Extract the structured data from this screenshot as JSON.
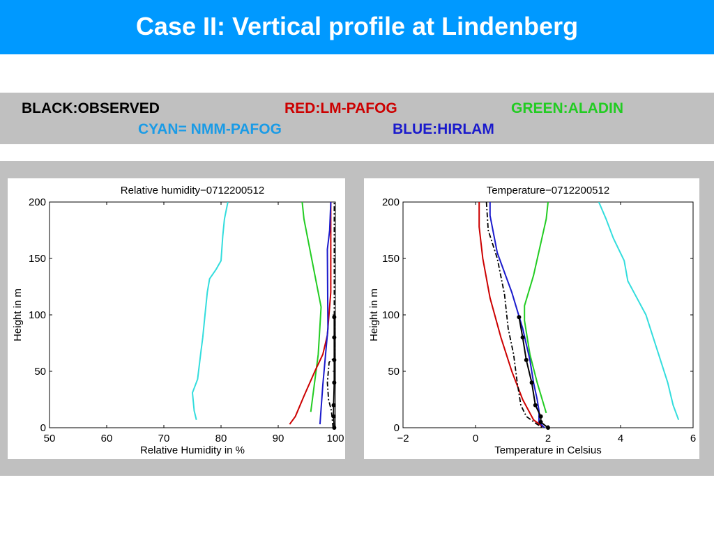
{
  "slide": {
    "title": "Case II: Vertical profile at Lindenberg"
  },
  "legend": {
    "observed": "BLACK:OBSERVED",
    "lm_pafog": "RED:LM-PAFOG",
    "aladin": "GREEN:ALADIN",
    "nmm_pafog": "CYAN= NMM-PAFOG",
    "hirlam": "BLUE:HIRLAM"
  },
  "colors": {
    "title_bar": "#0099ff",
    "band": "#c0c0c0",
    "observed": "#000000",
    "lm_pafog": "#cc0000",
    "aladin": "#22cc22",
    "nmm_pafog": "#33dddd",
    "hirlam": "#1a1acc"
  },
  "chart_data": [
    {
      "type": "line",
      "title": "Relative humidity−0712200512",
      "xlabel": "Relative Humidity in %",
      "ylabel": "Height in m",
      "xlim": [
        50,
        100
      ],
      "ylim": [
        0,
        200
      ],
      "xticks": [
        50,
        60,
        70,
        80,
        90,
        100
      ],
      "yticks": [
        0,
        50,
        100,
        150,
        200
      ],
      "grid": false,
      "series": [
        {
          "key": "nmm_pafog",
          "style": "solid",
          "markers": false,
          "points": [
            [
              75.7,
              7
            ],
            [
              75.3,
              15
            ],
            [
              75.0,
              31
            ],
            [
              75.9,
              43
            ],
            [
              76.5,
              68
            ],
            [
              76.8,
              80
            ],
            [
              77.2,
              100
            ],
            [
              77.6,
              120
            ],
            [
              78.0,
              132
            ],
            [
              79.1,
              140
            ],
            [
              80.0,
              148
            ],
            [
              80.3,
              170
            ],
            [
              80.6,
              185
            ],
            [
              81.2,
              200
            ]
          ]
        },
        {
          "key": "aladin",
          "style": "solid",
          "markers": false,
          "points": [
            [
              95.7,
              14
            ],
            [
              97.0,
              65
            ],
            [
              97.5,
              107
            ],
            [
              94.5,
              185
            ],
            [
              94.2,
              200
            ]
          ]
        },
        {
          "key": "lm_pafog",
          "style": "solid",
          "markers": false,
          "points": [
            [
              92.0,
              3
            ],
            [
              93.0,
              10
            ],
            [
              94.5,
              28
            ],
            [
              96.5,
              51
            ],
            [
              97.8,
              65
            ],
            [
              98.6,
              82
            ],
            [
              99.2,
              120
            ],
            [
              99.2,
              150
            ],
            [
              99.2,
              200
            ]
          ]
        },
        {
          "key": "hirlam",
          "style": "solid",
          "markers": false,
          "points": [
            [
              97.3,
              3
            ],
            [
              97.8,
              38
            ],
            [
              98.7,
              88
            ],
            [
              98.6,
              158
            ],
            [
              99.0,
              175
            ],
            [
              99.2,
              200
            ]
          ]
        },
        {
          "key": "observed",
          "style": "dashdot",
          "markers": false,
          "points": [
            [
              99.6,
              0
            ],
            [
              99.3,
              15
            ],
            [
              98.8,
              25
            ],
            [
              98.6,
              40
            ],
            [
              98.9,
              58
            ],
            [
              99.8,
              62
            ],
            [
              99.8,
              200
            ]
          ]
        },
        {
          "key": "observed",
          "style": "solid",
          "markers": true,
          "points": [
            [
              99.8,
              0
            ],
            [
              99.7,
              10
            ],
            [
              99.7,
              20
            ],
            [
              99.8,
              40
            ],
            [
              99.8,
              60
            ],
            [
              99.8,
              80
            ],
            [
              99.8,
              98
            ]
          ]
        }
      ]
    },
    {
      "type": "line",
      "title": "Temperature−0712200512",
      "xlabel": "Temperature in Celsius",
      "ylabel": "Height in m",
      "xlim": [
        -2,
        6
      ],
      "ylim": [
        0,
        200
      ],
      "xticks": [
        -2,
        0,
        2,
        4,
        6
      ],
      "yticks": [
        0,
        50,
        100,
        150,
        200
      ],
      "grid": false,
      "series": [
        {
          "key": "nmm_pafog",
          "style": "solid",
          "markers": false,
          "points": [
            [
              3.4,
              200
            ],
            [
              3.6,
              185
            ],
            [
              3.8,
              168
            ],
            [
              4.1,
              148
            ],
            [
              4.2,
              130
            ],
            [
              4.4,
              118
            ],
            [
              4.7,
              100
            ],
            [
              4.9,
              80
            ],
            [
              5.1,
              60
            ],
            [
              5.3,
              40
            ],
            [
              5.45,
              20
            ],
            [
              5.6,
              7
            ]
          ]
        },
        {
          "key": "aladin",
          "style": "solid",
          "markers": false,
          "points": [
            [
              2.0,
              200
            ],
            [
              1.95,
              185
            ],
            [
              1.6,
              135
            ],
            [
              1.35,
              108
            ],
            [
              1.35,
              95
            ],
            [
              1.5,
              65
            ],
            [
              1.7,
              40
            ],
            [
              1.95,
              13
            ]
          ]
        },
        {
          "key": "lm_pafog",
          "style": "solid",
          "markers": false,
          "points": [
            [
              0.1,
              200
            ],
            [
              0.1,
              178
            ],
            [
              0.2,
              150
            ],
            [
              0.4,
              115
            ],
            [
              0.7,
              80
            ],
            [
              1.0,
              50
            ],
            [
              1.3,
              25
            ],
            [
              1.6,
              7
            ],
            [
              1.85,
              1
            ]
          ]
        },
        {
          "key": "hirlam",
          "style": "solid",
          "markers": false,
          "points": [
            [
              0.4,
              200
            ],
            [
              0.4,
              188
            ],
            [
              0.6,
              155
            ],
            [
              1.0,
              120
            ],
            [
              1.3,
              88
            ],
            [
              1.5,
              60
            ],
            [
              1.6,
              40
            ],
            [
              1.7,
              25
            ],
            [
              1.75,
              15
            ],
            [
              1.75,
              5
            ],
            [
              1.9,
              0
            ]
          ]
        },
        {
          "key": "observed",
          "style": "dashdot",
          "markers": false,
          "points": [
            [
              0.3,
              200
            ],
            [
              0.35,
              175
            ],
            [
              0.6,
              150
            ],
            [
              0.8,
              118
            ],
            [
              0.9,
              88
            ],
            [
              1.05,
              65
            ],
            [
              1.15,
              40
            ],
            [
              1.25,
              20
            ],
            [
              1.4,
              10
            ],
            [
              1.7,
              3
            ],
            [
              1.85,
              0
            ]
          ]
        },
        {
          "key": "observed",
          "style": "solid",
          "markers": true,
          "points": [
            [
              2.0,
              0
            ],
            [
              1.8,
              5
            ],
            [
              1.8,
              10
            ],
            [
              1.65,
              20
            ],
            [
              1.55,
              40
            ],
            [
              1.4,
              60
            ],
            [
              1.3,
              80
            ],
            [
              1.2,
              98
            ]
          ]
        }
      ]
    }
  ]
}
